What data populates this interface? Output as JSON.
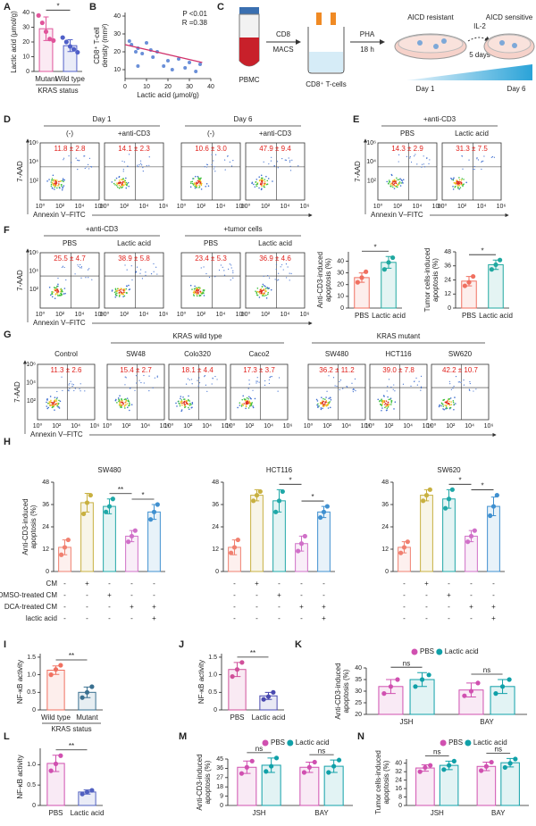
{
  "panel_labels": [
    "A",
    "B",
    "C",
    "D",
    "E",
    "F",
    "G",
    "H",
    "I",
    "J",
    "K",
    "L",
    "M",
    "N"
  ],
  "diagram": {
    "tube": "PBMC",
    "step1": [
      "CD8",
      "MACS"
    ],
    "cells": "CD8⁺ T-cells",
    "step2": [
      "PHA",
      "18 h"
    ],
    "resistant": "AICD resistant",
    "step3": [
      "IL-2",
      "5 days"
    ],
    "sensitive": "AICD sensitive",
    "day_start": "Day 1",
    "day_end": "Day 6"
  },
  "flow": {
    "ylabel": "7-AAD",
    "xlabel": "Annexin V–FITC",
    "xticks": [
      "10⁰",
      "10²",
      "10⁴",
      "10⁶"
    ],
    "yticks": [
      "10²",
      "10⁴",
      "10⁶"
    ],
    "panels": {
      "D": [
        {
          "label": "Day 1",
          "plots": [
            {
              "label": "(-)",
              "value": "11.8 ± 2.8"
            },
            {
              "label": "+anti-CD3",
              "value": "14.1 ± 2.3"
            }
          ]
        },
        {
          "label": "Day 6",
          "plots": [
            {
              "label": "(-)",
              "value": "10.6 ± 3.0"
            },
            {
              "label": "+anti-CD3",
              "value": "47.9 ± 9.4"
            }
          ]
        }
      ],
      "E": [
        {
          "label": "+anti-CD3",
          "plots": [
            {
              "label": "PBS",
              "value": "14.3 ± 2.9"
            },
            {
              "label": "Lactic acid",
              "value": "31.3 ± 7.5"
            }
          ]
        }
      ],
      "F": [
        {
          "label": "+anti-CD3",
          "plots": [
            {
              "label": "PBS",
              "value": "25.5 ± 4.7"
            },
            {
              "label": "Lactic acid",
              "value": "38.9 ± 5.8"
            }
          ]
        },
        {
          "label": "+tumor cells",
          "plots": [
            {
              "label": "PBS",
              "value": "23.4 ± 5.3"
            },
            {
              "label": "Lactic acid",
              "value": "36.9 ± 4.6"
            }
          ]
        }
      ],
      "G": [
        {
          "plots": [
            {
              "label": "Control",
              "value": "11.3 ± 2.6"
            }
          ]
        },
        {
          "label": "KRAS wild type",
          "plots": [
            {
              "label": "SW48",
              "value": "15.4 ± 2.7"
            },
            {
              "label": "Colo320",
              "value": "18.1 ± 4.4"
            },
            {
              "label": "Caco2",
              "value": "17.3 ± 3.7"
            }
          ]
        },
        {
          "label": "KRAS mutant",
          "plots": [
            {
              "label": "SW480",
              "value": "36.2 ± 11.2"
            },
            {
              "label": "HCT116",
              "value": "39.0 ± 7.8"
            },
            {
              "label": "SW620",
              "value": "42.2 ± 10.7"
            }
          ]
        }
      ]
    }
  },
  "chart_data": [
    {
      "type": "bar",
      "ylabel": [
        "Lactic acid (μmol/g)"
      ],
      "xlabel": "KRAS status",
      "categories": [
        "Mutant",
        "Wild type"
      ],
      "values": [
        29,
        17.5
      ],
      "errors": [
        8,
        4
      ],
      "points": [
        [
          38,
          33,
          27,
          22,
          21
        ],
        [
          23,
          20,
          17,
          15,
          13
        ]
      ],
      "colors": [
        "#e0559b",
        "#5060c8"
      ],
      "ylim": [
        0,
        40
      ],
      "yticks": [
        0,
        10,
        20,
        30,
        40
      ],
      "significance": [
        {
          "label": "*",
          "between": [
            0,
            1
          ]
        }
      ]
    },
    {
      "type": "scatter",
      "ylabel": [
        "CD8⁺ T-cell",
        "density (mm²)"
      ],
      "xlabel": "Lactic acid (μmol/g)",
      "x": [
        2,
        3,
        5,
        6,
        8,
        10,
        12,
        13,
        15,
        18,
        20,
        22,
        25,
        28,
        30,
        33,
        35,
        6
      ],
      "values": [
        26,
        24,
        20,
        22,
        19,
        25,
        21,
        17,
        20,
        12,
        15,
        10,
        16,
        11,
        14,
        9,
        13,
        12
      ],
      "fit": {
        "x": [
          0,
          36
        ],
        "values": [
          24,
          14
        ]
      },
      "color": "#6a8fd8",
      "fit_color": "#d0306a",
      "xlim": [
        0,
        40
      ],
      "ylim": [
        5,
        42
      ],
      "xticks": [
        0,
        10,
        20,
        30,
        40
      ],
      "yticks": [
        10,
        20,
        30,
        40
      ],
      "annotations": [
        "P <0.01",
        "R =0.38"
      ]
    },
    {
      "type": "bar",
      "ylabel": [
        "Anti-CD3-induced",
        "apoptosis (%)"
      ],
      "categories": [
        "PBS",
        "Lactic acid"
      ],
      "values": [
        26,
        39
      ],
      "errors": [
        4,
        5
      ],
      "points": [
        [
          22,
          26,
          31
        ],
        [
          33,
          39,
          43
        ]
      ],
      "colors": [
        "#f07060",
        "#20a8a0"
      ],
      "ylim": [
        0,
        48
      ],
      "yticks": [
        0,
        10,
        20,
        30,
        40
      ],
      "significance": [
        {
          "label": "*",
          "between": [
            0,
            1
          ]
        }
      ]
    },
    {
      "type": "bar",
      "ylabel": [
        "Tumor cells-induced",
        "apoptosis (%)"
      ],
      "categories": [
        "PBS",
        "Lactic acid"
      ],
      "values": [
        23,
        37
      ],
      "errors": [
        4,
        4
      ],
      "points": [
        [
          19,
          22,
          27
        ],
        [
          33,
          37,
          41
        ]
      ],
      "colors": [
        "#f07060",
        "#20a8a0"
      ],
      "ylim": [
        0,
        48
      ],
      "yticks": [
        0,
        12,
        24,
        36,
        48
      ],
      "significance": [
        {
          "label": "*",
          "between": [
            0,
            1
          ]
        }
      ]
    },
    {
      "type": "bar",
      "title": "SW480",
      "ylabel": [
        "Anti-CD3-induced",
        "apoptosis (%)"
      ],
      "categories": [
        null,
        null,
        null,
        null,
        null
      ],
      "values": [
        13,
        37,
        35,
        19,
        32
      ],
      "errors": [
        4,
        5,
        4,
        3,
        4
      ],
      "points": [
        [
          9,
          13,
          17
        ],
        [
          31,
          37,
          41
        ],
        [
          32,
          35,
          39
        ],
        [
          16,
          19,
          22
        ],
        [
          28,
          32,
          36
        ]
      ],
      "colors": [
        "#f08070",
        "#c8b040",
        "#20a8a8",
        "#d070c8",
        "#4090d0"
      ],
      "ylim": [
        0,
        48
      ],
      "yticks": [
        0,
        12,
        24,
        36,
        48
      ],
      "significance": [
        {
          "label": "**",
          "between": [
            2,
            3
          ]
        },
        {
          "label": "*",
          "between": [
            3,
            4
          ]
        }
      ],
      "condition_labels": [
        "CM",
        "DMSO-treated CM",
        "DCA-treated CM",
        "lactic acid"
      ],
      "condition_marks": [
        [
          "-",
          "+",
          "-",
          "-",
          "-"
        ],
        [
          "-",
          "-",
          "+",
          "-",
          "-"
        ],
        [
          "-",
          "-",
          "-",
          "+",
          "+"
        ],
        [
          "-",
          "-",
          "-",
          "-",
          "+"
        ]
      ]
    },
    {
      "type": "bar",
      "title": "HCT116",
      "categories": [
        null,
        null,
        null,
        null,
        null
      ],
      "values": [
        13,
        41,
        38,
        15,
        32
      ],
      "errors": [
        4,
        3,
        6,
        4,
        3
      ],
      "points": [
        [
          10,
          13,
          17
        ],
        [
          38,
          41,
          43
        ],
        [
          32,
          38,
          43
        ],
        [
          11,
          15,
          19
        ],
        [
          29,
          32,
          35
        ]
      ],
      "colors": [
        "#f08070",
        "#c8b040",
        "#20a8a8",
        "#d070c8",
        "#4090d0"
      ],
      "ylim": [
        0,
        48
      ],
      "yticks": [
        0,
        12,
        24,
        36,
        48
      ],
      "significance": [
        {
          "label": "*",
          "between": [
            2,
            3
          ]
        },
        {
          "label": "*",
          "between": [
            3,
            4
          ]
        }
      ],
      "condition_marks": [
        [
          "-",
          "+",
          "-",
          "-",
          "-"
        ],
        [
          "-",
          "-",
          "+",
          "-",
          "-"
        ],
        [
          "-",
          "-",
          "-",
          "+",
          "+"
        ],
        [
          "-",
          "-",
          "-",
          "-",
          "+"
        ]
      ]
    },
    {
      "type": "bar",
      "title": "SW620",
      "categories": [
        null,
        null,
        null,
        null,
        null
      ],
      "values": [
        13,
        41,
        39,
        19,
        35
      ],
      "errors": [
        3,
        3,
        5,
        3,
        5
      ],
      "points": [
        [
          10,
          13,
          16
        ],
        [
          38,
          41,
          44
        ],
        [
          34,
          39,
          44
        ],
        [
          16,
          19,
          22
        ],
        [
          30,
          35,
          41
        ]
      ],
      "colors": [
        "#f08070",
        "#c8b040",
        "#20a8a8",
        "#d070c8",
        "#4090d0"
      ],
      "ylim": [
        0,
        48
      ],
      "yticks": [
        0,
        12,
        24,
        36,
        48
      ],
      "significance": [
        {
          "label": "*",
          "between": [
            2,
            3
          ]
        },
        {
          "label": "*",
          "between": [
            3,
            4
          ]
        }
      ],
      "condition_marks": [
        [
          "-",
          "+",
          "-",
          "-",
          "-"
        ],
        [
          "-",
          "-",
          "+",
          "-",
          "-"
        ],
        [
          "-",
          "-",
          "-",
          "+",
          "+"
        ],
        [
          "-",
          "-",
          "-",
          "-",
          "+"
        ]
      ]
    },
    {
      "type": "bar",
      "ylabel": [
        "NF-κB activity"
      ],
      "xlabel": "KRAS status",
      "categories": [
        "Wild type",
        "Mutant"
      ],
      "values": [
        1.13,
        0.5
      ],
      "errors": [
        0.12,
        0.15
      ],
      "points": [
        [
          1.0,
          1.15,
          1.27
        ],
        [
          0.35,
          0.5,
          0.66
        ]
      ],
      "colors": [
        "#f07060",
        "#3a7090"
      ],
      "ylim": [
        0,
        1.6
      ],
      "yticks": [
        0,
        0.5,
        {
          "value": 1,
          "label": "1.0"
        },
        1.5
      ],
      "significance": [
        {
          "label": "**",
          "between": [
            0,
            1
          ]
        }
      ]
    },
    {
      "type": "bar",
      "ylabel": [
        "NF-κB activity"
      ],
      "categories": [
        "PBS",
        "Lactic acid"
      ],
      "values": [
        1.15,
        0.4
      ],
      "errors": [
        0.2,
        0.1
      ],
      "points": [
        [
          0.95,
          1.15,
          1.35
        ],
        [
          0.3,
          0.38,
          0.5
        ]
      ],
      "colors": [
        "#d0509a",
        "#4a4ab0"
      ],
      "ylim": [
        0,
        1.6
      ],
      "yticks": [
        0,
        0.5,
        {
          "value": 1,
          "label": "1.0"
        },
        1.5
      ],
      "significance": [
        {
          "label": "**",
          "between": [
            0,
            1
          ]
        }
      ]
    },
    {
      "type": "bar",
      "ylabel": [
        "Anti-CD3-induced",
        "apoptosis (%)"
      ],
      "categories": [
        "JSH",
        "BAY"
      ],
      "series": [
        {
          "name": "PBS",
          "color": "#d050b0",
          "values": [
            32,
            30.5
          ],
          "errors": [
            3,
            3
          ],
          "points": [
            [
              29,
              32,
              35
            ],
            [
              28,
              30,
              33.5
            ]
          ]
        },
        {
          "name": "Lactic acid",
          "color": "#10a0a8",
          "values": [
            35,
            32
          ],
          "errors": [
            3,
            3
          ],
          "points": [
            [
              32,
              35,
              37
            ],
            [
              29,
              32,
              35
            ]
          ]
        }
      ],
      "ylim": [
        20,
        40
      ],
      "yticks": [
        20,
        25,
        30,
        35,
        40
      ],
      "significance": [
        {
          "label": "ns",
          "category": 0
        },
        {
          "label": "ns",
          "category": 1
        }
      ]
    },
    {
      "type": "bar",
      "ylabel": [
        "NF-κB activity"
      ],
      "categories": [
        "PBS",
        "Lactic acid"
      ],
      "values": [
        1.03,
        0.33
      ],
      "errors": [
        0.2,
        0.05
      ],
      "points": [
        [
          0.85,
          1.02,
          1.22
        ],
        [
          0.28,
          0.33,
          0.37
        ]
      ],
      "colors": [
        "#d050b0",
        "#5060c0"
      ],
      "ylim": [
        0,
        1.4
      ],
      "yticks": [
        0,
        0.5,
        {
          "value": 1,
          "label": "1.0"
        }
      ],
      "significance": [
        {
          "label": "**",
          "between": [
            0,
            1
          ]
        }
      ]
    },
    {
      "type": "bar",
      "ylabel": [
        "Anti-CD3-induced",
        "apoptosis (%)"
      ],
      "categories": [
        "JSH",
        "BAY"
      ],
      "series": [
        {
          "name": "PBS",
          "color": "#d050b0",
          "values": [
            37,
            37
          ],
          "errors": [
            6,
            5
          ],
          "points": [
            [
              31,
              37,
              43
            ],
            [
              32,
              37,
              42
            ]
          ]
        },
        {
          "name": "Lactic acid",
          "color": "#10a0a8",
          "values": [
            39,
            38
          ],
          "errors": [
            7,
            6
          ],
          "points": [
            [
              33,
              38,
              46
            ],
            [
              32,
              38,
              44
            ]
          ]
        }
      ],
      "ylim": [
        0,
        45
      ],
      "yticks": [
        0,
        9,
        18,
        27,
        36,
        45
      ],
      "significance": [
        {
          "label": "ns",
          "category": 0
        },
        {
          "label": "ns",
          "category": 1
        }
      ]
    },
    {
      "type": "bar",
      "ylabel": [
        "Tumor cells-induced",
        "apoptosis (%)"
      ],
      "categories": [
        "JSH",
        "BAY"
      ],
      "series": [
        {
          "name": "PBS",
          "color": "#d050b0",
          "values": [
            35.5,
            37
          ],
          "errors": [
            3,
            4
          ],
          "points": [
            [
              32,
              36,
              38
            ],
            [
              33,
              37,
              41
            ]
          ]
        },
        {
          "name": "Lactic acid",
          "color": "#10a0a8",
          "values": [
            38,
            40.5
          ],
          "errors": [
            4,
            4
          ],
          "points": [
            [
              34,
              38,
              42
            ],
            [
              36,
              40,
              44
            ]
          ]
        }
      ],
      "ylim": [
        0,
        44
      ],
      "yticks": [
        0,
        8,
        16,
        24,
        32,
        40
      ],
      "significance": [
        {
          "label": "ns",
          "category": 0
        },
        {
          "label": "ns",
          "category": 1
        }
      ]
    }
  ]
}
